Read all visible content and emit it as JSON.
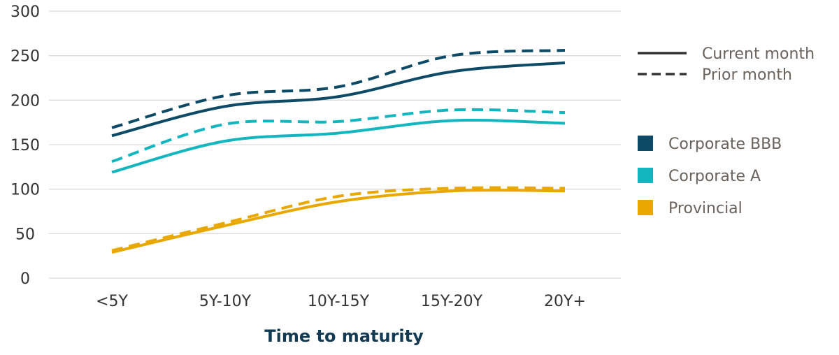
{
  "chart_data": {
    "type": "line",
    "categories": [
      "<5Y",
      "5Y-10Y",
      "10Y-15Y",
      "15Y-20Y",
      "20Y+"
    ],
    "xlabel": "Time to maturity",
    "ylabel": "",
    "ylim": [
      0,
      300
    ],
    "yticks": [
      0,
      50,
      100,
      150,
      200,
      250,
      300
    ],
    "grid": true,
    "legend_position": "right",
    "line_style_legend": [
      {
        "label": "Current month",
        "dash": "solid"
      },
      {
        "label": "Prior month",
        "dash": "dashed"
      }
    ],
    "groups": [
      {
        "name": "Corporate BBB",
        "color": "#0d4a66"
      },
      {
        "name": "Corporate A",
        "color": "#13b5bf"
      },
      {
        "name": "Provincial",
        "color": "#e8a800"
      }
    ],
    "series": [
      {
        "group": "Corporate BBB",
        "period": "Current month",
        "dash": "solid",
        "values": [
          160,
          193,
          204,
          232,
          242
        ]
      },
      {
        "group": "Corporate BBB",
        "period": "Prior month",
        "dash": "dashed",
        "values": [
          169,
          205,
          215,
          250,
          256
        ]
      },
      {
        "group": "Corporate A",
        "period": "Current month",
        "dash": "solid",
        "values": [
          119,
          154,
          163,
          177,
          174
        ]
      },
      {
        "group": "Corporate A",
        "period": "Prior month",
        "dash": "dashed",
        "values": [
          131,
          173,
          176,
          189,
          186
        ]
      },
      {
        "group": "Provincial",
        "period": "Current month",
        "dash": "solid",
        "values": [
          29,
          59,
          86,
          98,
          98
        ]
      },
      {
        "group": "Provincial",
        "period": "Prior month",
        "dash": "dashed",
        "values": [
          31,
          62,
          92,
          101,
          101
        ]
      }
    ]
  }
}
